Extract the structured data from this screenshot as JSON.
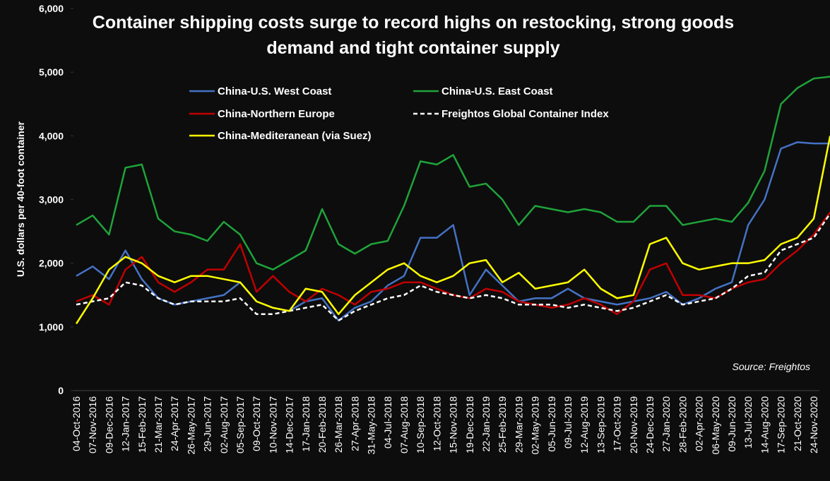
{
  "chart_data": {
    "type": "line",
    "title": "Container shipping costs surge to record highs on restocking, strong goods demand and tight container supply",
    "y_label": "U.S. dollars per 40-foot container",
    "annotation": "Source: Freightos",
    "categories": [
      "04-Oct-2016",
      "07-Nov-2016",
      "09-Dec-2016",
      "12-Jan-2017",
      "15-Feb-2017",
      "21-Mar-2017",
      "24-Apr-2017",
      "26-May-2017",
      "29-Jun-2017",
      "02-Aug-2017",
      "05-Sep-2017",
      "09-Oct-2017",
      "10-Nov-2017",
      "14-Dec-2017",
      "17-Jan-2018",
      "20-Feb-2018",
      "26-Mar-2018",
      "27-Apr-2018",
      "31-May-2018",
      "04-Jul-2018",
      "07-Aug-2018",
      "10-Sep-2018",
      "12-Oct-2018",
      "15-Nov-2018",
      "19-Dec-2018",
      "22-Jan-2019",
      "25-Feb-2019",
      "29-Mar-2019",
      "02-May-2019",
      "05-Jun-2019",
      "09-Jul-2019",
      "12-Aug-2019",
      "13-Sep-2019",
      "17-Oct-2019",
      "20-Nov-2019",
      "24-Dec-2019",
      "27-Jan-2020",
      "28-Feb-2020",
      "02-Apr-2020",
      "06-May-2020",
      "09-Jun-2020",
      "13-Jul-2020",
      "14-Aug-2020",
      "17-Sep-2020",
      "21-Oct-2020",
      "24-Nov-2020",
      null
    ],
    "series": [
      {
        "name": "China-U.S. West Coast",
        "color": "#4472c4",
        "dashed": false,
        "values": [
          1800,
          1950,
          1750,
          2200,
          1750,
          1450,
          1350,
          1400,
          1450,
          1500,
          1700,
          1400,
          1300,
          1250,
          1400,
          1450,
          1100,
          1300,
          1400,
          1650,
          1800,
          2400,
          2400,
          2600,
          1500,
          1900,
          1650,
          1400,
          1450,
          1450,
          1600,
          1450,
          1400,
          1350,
          1400,
          1450,
          1550,
          1350,
          1450,
          1600,
          1700,
          2600,
          3000,
          3800,
          3900,
          3880,
          3880
        ]
      },
      {
        "name": "China-U.S. East Coast",
        "color": "#1fa33a",
        "dashed": false,
        "values": [
          2600,
          2750,
          2450,
          3500,
          3550,
          2700,
          2500,
          2450,
          2350,
          2650,
          2450,
          2000,
          1900,
          2050,
          2200,
          2850,
          2300,
          2150,
          2300,
          2350,
          2900,
          3600,
          3550,
          3700,
          3200,
          3250,
          3000,
          2600,
          2900,
          2850,
          2800,
          2850,
          2800,
          2650,
          2650,
          2900,
          2900,
          2600,
          2650,
          2700,
          2650,
          2950,
          3450,
          4500,
          4750,
          4900,
          4930
        ]
      },
      {
        "name": "China-Northern Europe",
        "color": "#c00000",
        "dashed": false,
        "values": [
          1400,
          1500,
          1350,
          1900,
          2100,
          1700,
          1550,
          1700,
          1900,
          1900,
          2300,
          1550,
          1800,
          1550,
          1400,
          1600,
          1500,
          1350,
          1550,
          1600,
          1700,
          1700,
          1600,
          1500,
          1450,
          1600,
          1550,
          1400,
          1350,
          1300,
          1350,
          1450,
          1350,
          1200,
          1400,
          1900,
          2000,
          1500,
          1500,
          1450,
          1600,
          1700,
          1750,
          2000,
          2200,
          2450,
          2800
        ]
      },
      {
        "name": "Freightos Global Container Index",
        "color": "#ffffff",
        "dashed": true,
        "values": [
          1350,
          1400,
          1450,
          1700,
          1650,
          1450,
          1350,
          1400,
          1400,
          1400,
          1450,
          1200,
          1200,
          1250,
          1300,
          1350,
          1100,
          1250,
          1350,
          1450,
          1500,
          1650,
          1550,
          1500,
          1450,
          1500,
          1450,
          1350,
          1350,
          1350,
          1300,
          1350,
          1300,
          1250,
          1300,
          1400,
          1500,
          1350,
          1400,
          1450,
          1600,
          1800,
          1850,
          2200,
          2300,
          2400,
          2780
        ]
      },
      {
        "name": "China-Mediteranean (via Suez)",
        "color": "#ffff00",
        "dashed": false,
        "values": [
          1050,
          1450,
          1900,
          2100,
          2000,
          1800,
          1700,
          1800,
          1800,
          1750,
          1700,
          1400,
          1300,
          1250,
          1600,
          1550,
          1200,
          1500,
          1700,
          1900,
          2000,
          1800,
          1700,
          1800,
          2000,
          2050,
          1700,
          1850,
          1600,
          1650,
          1700,
          1900,
          1600,
          1450,
          1500,
          2300,
          2400,
          2000,
          1900,
          1950,
          2000,
          2000,
          2050,
          2300,
          2400,
          2700,
          4000
        ]
      }
    ],
    "ylim": [
      0,
      6000
    ],
    "yticks": [
      0,
      {
        "value": 1000,
        "label": "1,000"
      },
      {
        "value": 2000,
        "label": "2,000"
      },
      {
        "value": 3000,
        "label": "3,000"
      },
      {
        "value": 4000,
        "label": "4,000"
      },
      {
        "value": 5000,
        "label": "5,000"
      },
      {
        "value": 6000,
        "label": "6,000"
      }
    ]
  }
}
